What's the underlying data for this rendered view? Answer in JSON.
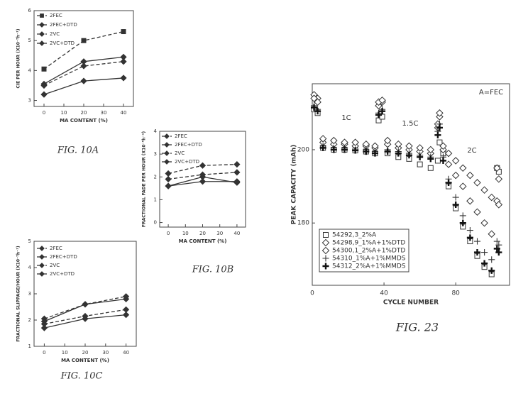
{
  "chart_data": [
    {
      "type": "line",
      "caption": "FIG. 10A",
      "xlabel": "MA CONTENT (%)",
      "ylabel": "CIE PER HOUR (X10⁻⁵h⁻¹)",
      "x": [
        0,
        20,
        40
      ],
      "xlim": [
        -5,
        45
      ],
      "xticks": [
        0,
        10,
        20,
        30,
        40
      ],
      "ylim": [
        2.8,
        6
      ],
      "yticks": [
        3,
        4,
        5,
        6
      ],
      "series": [
        {
          "name": "2FEC",
          "color": "#333333",
          "dash": true,
          "marker": "square",
          "values": [
            4.05,
            5.0,
            5.3
          ]
        },
        {
          "name": "2FEC+DTD",
          "color": "#333333",
          "dash": false,
          "marker": "diamond",
          "values": [
            3.55,
            4.3,
            4.45
          ]
        },
        {
          "name": "2VC",
          "color": "#333333",
          "dash": true,
          "marker": "diamond",
          "values": [
            3.5,
            4.15,
            4.3
          ]
        },
        {
          "name": "2VC+DTD",
          "color": "#333333",
          "dash": false,
          "marker": "diamond",
          "values": [
            3.2,
            3.65,
            3.75
          ]
        }
      ]
    },
    {
      "type": "line",
      "caption": "FIG. 10B",
      "xlabel": "MA CONTENT (%)",
      "ylabel": "FRACTIONAL FADE PER HOUR (X10⁻⁵h⁻¹)",
      "x": [
        0,
        20,
        40
      ],
      "xlim": [
        -5,
        45
      ],
      "xticks": [
        0,
        10,
        20,
        30,
        40
      ],
      "ylim": [
        -0.2,
        4
      ],
      "yticks": [
        0,
        1,
        2,
        3,
        4
      ],
      "series": [
        {
          "name": "2FEC",
          "color": "#333333",
          "dash": true,
          "marker": "diamond",
          "values": [
            2.15,
            2.5,
            2.55
          ]
        },
        {
          "name": "2FEC+DTD",
          "color": "#333333",
          "dash": false,
          "marker": "diamond",
          "values": [
            1.6,
            2.0,
            1.75
          ]
        },
        {
          "name": "2VC",
          "color": "#333333",
          "dash": true,
          "marker": "diamond",
          "values": [
            1.9,
            2.1,
            2.2
          ]
        },
        {
          "name": "2VC+DTD",
          "color": "#333333",
          "dash": false,
          "marker": "diamond",
          "values": [
            1.6,
            1.8,
            1.8
          ]
        }
      ]
    },
    {
      "type": "line",
      "caption": "FIG. 10C",
      "xlabel": "MA CONTENT (%)",
      "ylabel": "FRACTIONAL SLIPPAGE/HOUR (X10⁻⁵h⁻¹)",
      "x": [
        0,
        20,
        40
      ],
      "xlim": [
        -5,
        45
      ],
      "xticks": [
        0,
        10,
        20,
        30,
        40
      ],
      "ylim": [
        1,
        5
      ],
      "yticks": [
        1,
        2,
        3,
        4,
        5
      ],
      "series": [
        {
          "name": "2FEC",
          "color": "#333333",
          "dash": true,
          "marker": "diamond",
          "values": [
            2.05,
            2.6,
            2.9
          ]
        },
        {
          "name": "2FEC+DTD",
          "color": "#333333",
          "dash": false,
          "marker": "diamond",
          "values": [
            1.95,
            2.6,
            2.8
          ]
        },
        {
          "name": "2VC",
          "color": "#333333",
          "dash": true,
          "marker": "diamond",
          "values": [
            1.85,
            2.15,
            2.4
          ]
        },
        {
          "name": "2VC+DTD",
          "color": "#333333",
          "dash": false,
          "marker": "diamond",
          "values": [
            1.7,
            2.05,
            2.2
          ]
        }
      ]
    },
    {
      "type": "scatter",
      "caption": "FIG. 23",
      "xlabel": "CYCLE NUMBER",
      "ylabel": "PEAK CAPACITY (mAh)",
      "annotations": [
        "1C",
        "1.5C",
        "2C",
        "A=FEC"
      ],
      "x": [
        1,
        3,
        6,
        12,
        18,
        24,
        30,
        35,
        37,
        39,
        42,
        48,
        54,
        60,
        66,
        70,
        71,
        73,
        76,
        80,
        84,
        88,
        92,
        96,
        100,
        103,
        104
      ],
      "xlim": [
        0,
        110
      ],
      "xticks": [
        0,
        40,
        80
      ],
      "ylim": [
        163,
        218
      ],
      "yticks": [
        180,
        200
      ],
      "series": [
        {
          "name": "54292,3_2%A",
          "color": "#333333",
          "marker": "square",
          "values": [
            211,
            210,
            200.5,
            200,
            200,
            199.8,
            199.5,
            199,
            208,
            209,
            199,
            198,
            197.5,
            196,
            195,
            197,
            202,
            199,
            190,
            184,
            179,
            175,
            171,
            168,
            166,
            195,
            194
          ]
        },
        {
          "name": "54298,9_1%A+1%DTD",
          "color": "#333333",
          "marker": "diamond",
          "values": [
            215,
            214,
            202,
            201.5,
            201.5,
            201,
            201,
            200.5,
            212,
            213,
            201.5,
            200.5,
            200,
            199.5,
            199,
            206,
            209,
            200,
            196,
            193,
            190,
            186,
            183,
            180,
            177,
            195,
            192
          ]
        },
        {
          "name": "54300,1_2%A+1%DTD",
          "color": "#333333",
          "marker": "diamond",
          "values": [
            214,
            213,
            203,
            202.5,
            202,
            202,
            201.5,
            201,
            213,
            213.5,
            202.5,
            201.5,
            201,
            200.5,
            200,
            207,
            210,
            201,
            199,
            197,
            195,
            193,
            191,
            189,
            187,
            186,
            185
          ]
        },
        {
          "name": "54310_1%A+1%MMDS",
          "color": "#333333",
          "marker": "plus",
          "values": [
            212,
            211,
            201,
            200.5,
            200.5,
            200,
            200,
            199.5,
            210,
            211,
            200,
            199.5,
            199,
            198.5,
            198,
            205,
            207,
            198,
            192,
            187,
            182,
            178,
            175,
            172,
            170,
            175,
            174
          ]
        },
        {
          "name": "54312_2%A+1%MMDS",
          "color": "#111111",
          "marker": "plus-bold",
          "values": [
            211.5,
            210.5,
            200.5,
            200,
            200,
            199.8,
            199.5,
            199,
            209.5,
            210.5,
            199.5,
            199,
            198.5,
            198,
            197.5,
            204,
            206,
            197,
            191,
            185,
            180,
            176,
            172,
            169,
            167,
            173,
            172
          ]
        }
      ]
    }
  ]
}
